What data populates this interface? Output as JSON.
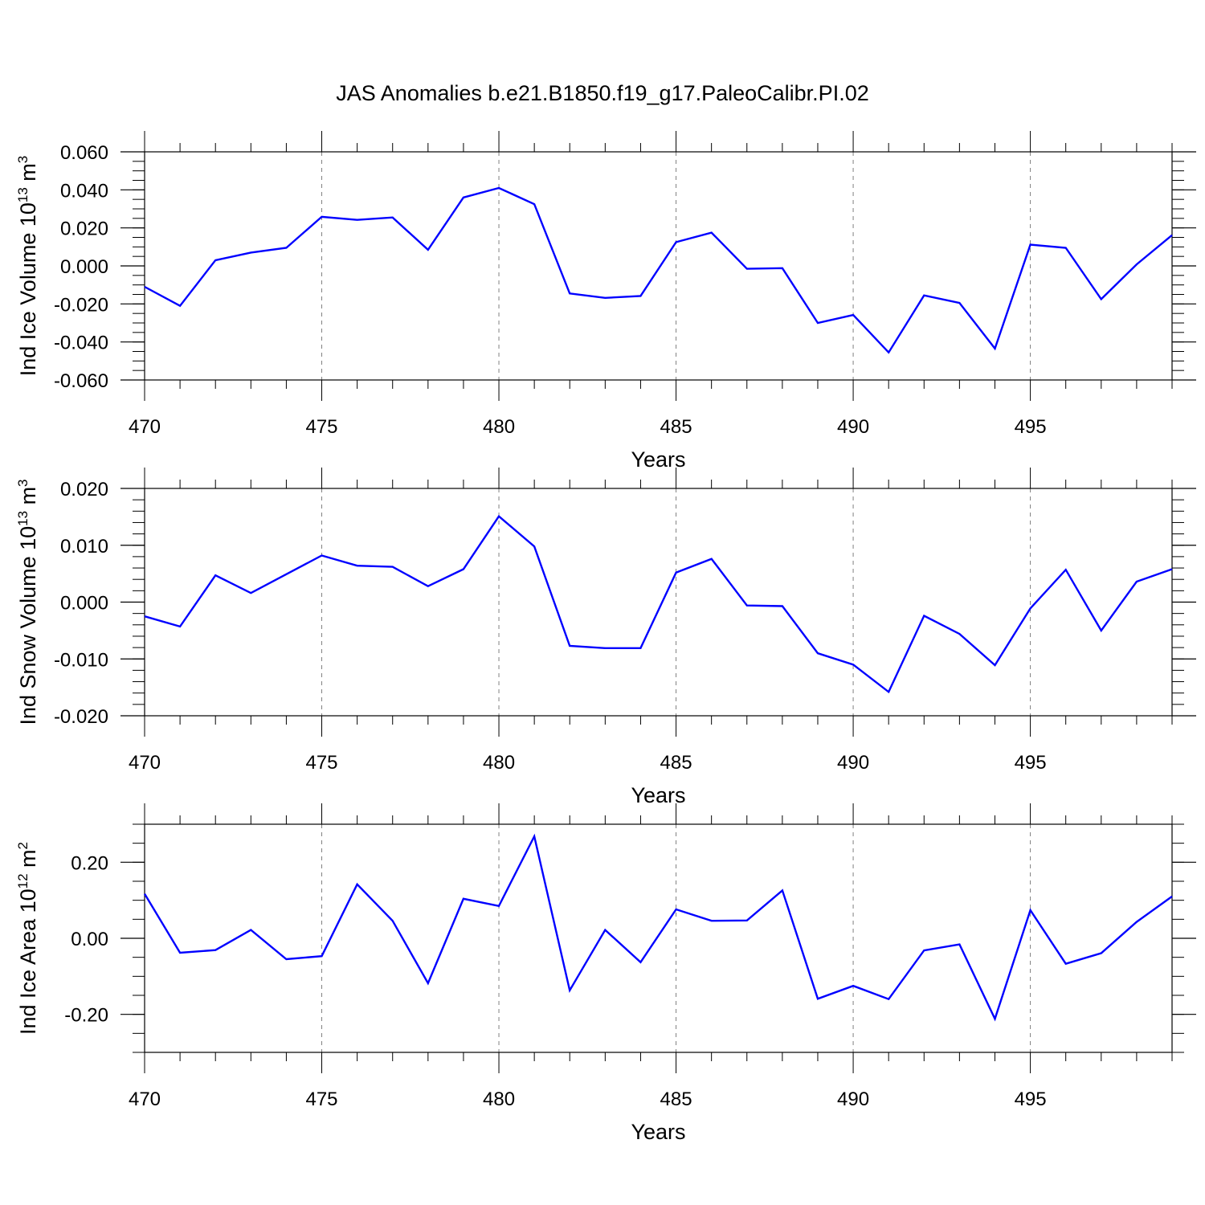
{
  "title": "JAS Anomalies b.e21.B1850.f19_g17.PaleoCalibr.PI.02",
  "colors": {
    "line": "#0000ff",
    "axes": "#000000",
    "grid": "#808080",
    "background": "#ffffff"
  },
  "chart_data": [
    {
      "type": "line",
      "ylabel": "Ind Ice Volume 10",
      "ylabel_exp": "13",
      "ylabel_unit": " m",
      "ylabel_unit_exp": "3",
      "xlabel": "Years",
      "xlim": [
        470,
        499
      ],
      "ylim": [
        -0.06,
        0.06
      ],
      "x_ticks": [
        "470",
        "475",
        "480",
        "485",
        "490",
        "495"
      ],
      "y_ticks": [
        "-0.060",
        "-0.040",
        "-0.020",
        "0.000",
        "0.020",
        "0.040",
        "0.060"
      ],
      "grid": "vertical dashed at major x ticks",
      "x": [
        470,
        471,
        472,
        473,
        474,
        475,
        476,
        477,
        478,
        479,
        480,
        481,
        482,
        483,
        484,
        485,
        486,
        487,
        488,
        489,
        490,
        491,
        492,
        493,
        494,
        495,
        496,
        497,
        498,
        499
      ],
      "series": [
        {
          "values": [
            -0.011,
            -0.021,
            0.003,
            0.007,
            0.0095,
            0.0258,
            0.0242,
            0.0255,
            0.0085,
            0.036,
            0.041,
            0.0325,
            -0.0145,
            -0.0168,
            -0.0158,
            0.0125,
            0.0175,
            -0.0015,
            -0.0012,
            -0.03,
            -0.0258,
            -0.0455,
            -0.0155,
            -0.0195,
            -0.0435,
            0.0112,
            0.0095,
            -0.0175,
            0.0008,
            0.0162
          ]
        }
      ]
    },
    {
      "type": "line",
      "ylabel": "Ind Snow Volume 10",
      "ylabel_exp": "13",
      "ylabel_unit": " m",
      "ylabel_unit_exp": "3",
      "xlabel": "Years",
      "xlim": [
        470,
        499
      ],
      "ylim": [
        -0.02,
        0.02
      ],
      "x_ticks": [
        "470",
        "475",
        "480",
        "485",
        "490",
        "495"
      ],
      "y_ticks": [
        "-0.020",
        "-0.010",
        "0.000",
        "0.010",
        "0.020"
      ],
      "grid": "vertical dashed at major x ticks",
      "x": [
        470,
        471,
        472,
        473,
        474,
        475,
        476,
        477,
        478,
        479,
        480,
        481,
        482,
        483,
        484,
        485,
        486,
        487,
        488,
        489,
        490,
        491,
        492,
        493,
        494,
        495,
        496,
        497,
        498,
        499
      ],
      "series": [
        {
          "values": [
            -0.0025,
            -0.0043,
            0.0047,
            0.0016,
            0.0049,
            0.0082,
            0.0064,
            0.0062,
            0.0028,
            0.0058,
            0.0151,
            0.0098,
            -0.0077,
            -0.0081,
            -0.0081,
            0.0052,
            0.0076,
            -0.0006,
            -0.0007,
            -0.009,
            -0.011,
            -0.0158,
            -0.0024,
            -0.0056,
            -0.0111,
            -0.0011,
            0.0057,
            -0.005,
            0.0036,
            0.0058
          ]
        }
      ]
    },
    {
      "type": "line",
      "ylabel": "Ind Ice Area 10",
      "ylabel_exp": "12",
      "ylabel_unit": " m",
      "ylabel_unit_exp": "2",
      "xlabel": "Years",
      "xlim": [
        470,
        499
      ],
      "ylim": [
        -0.3,
        0.3
      ],
      "x_ticks": [
        "470",
        "475",
        "480",
        "485",
        "490",
        "495"
      ],
      "y_ticks": [
        "-0.20",
        "0.00",
        "0.20"
      ],
      "grid": "vertical dashed at major x ticks",
      "x": [
        470,
        471,
        472,
        473,
        474,
        475,
        476,
        477,
        478,
        479,
        480,
        481,
        482,
        483,
        484,
        485,
        486,
        487,
        488,
        489,
        490,
        491,
        492,
        493,
        494,
        495,
        496,
        497,
        498,
        499
      ],
      "series": [
        {
          "values": [
            0.117,
            -0.038,
            -0.031,
            0.022,
            -0.055,
            -0.047,
            0.142,
            0.046,
            -0.118,
            0.104,
            0.085,
            0.268,
            -0.137,
            0.022,
            -0.063,
            0.076,
            0.046,
            0.047,
            0.126,
            -0.159,
            -0.125,
            -0.16,
            -0.032,
            -0.016,
            -0.212,
            0.074,
            -0.067,
            -0.039,
            0.043,
            0.11
          ]
        }
      ]
    }
  ]
}
